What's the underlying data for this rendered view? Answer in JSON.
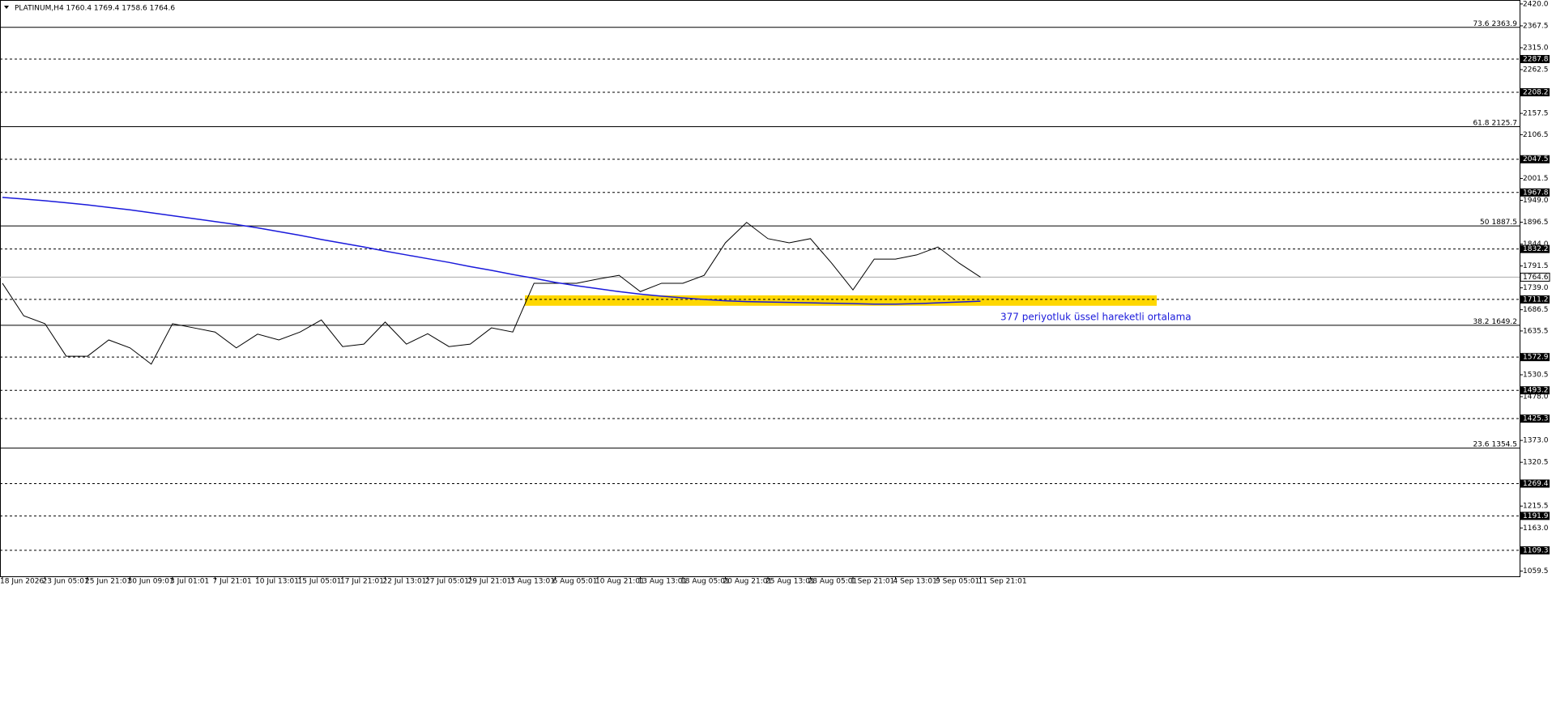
{
  "chart_data": {
    "type": "line",
    "title": "PLATINUM,H4  1760.4 1769.4 1758.6 1764.6",
    "categories": [
      "18 Jun 2026",
      null,
      "23 Jun 05:01",
      null,
      "25 Jun 21:01",
      null,
      "30 Jun 09:01",
      null,
      "3 Jul 01:01",
      null,
      "7 Jul 21:01",
      null,
      "10 Jul 13:01",
      null,
      "15 Jul 05:01",
      null,
      "17 Jul 21:01",
      null,
      "22 Jul 13:01",
      null,
      "27 Jul 05:01",
      null,
      "29 Jul 21:01",
      null,
      "3 Aug 13:01",
      null,
      "6 Aug 05:01",
      null,
      "10 Aug 21:01",
      null,
      "13 Aug 13:01",
      null,
      "18 Aug 05:01",
      null,
      "20 Aug 21:01",
      null,
      "25 Aug 13:01",
      null,
      "28 Aug 05:01",
      null,
      "1 Sep 21:01",
      null,
      "4 Sep 13:01",
      null,
      "9 Sep 05:01",
      null,
      "11 Sep 21:01"
    ],
    "series": [
      {
        "color": "#000000",
        "values": [
          1750,
          1672,
          1653,
          1575,
          1575,
          1614,
          1595,
          1556,
          1653,
          1643,
          1633,
          1595,
          1628,
          1614,
          1633,
          1662,
          1598,
          1604,
          1657,
          1604,
          1629,
          1598,
          1604,
          1643,
          1633,
          1750,
          1750,
          1750,
          1760,
          1769,
          1730,
          1750,
          1750,
          1769,
          1847,
          1896,
          1857,
          1847,
          1857,
          1798,
          1734,
          1808,
          1808,
          1818,
          1837,
          1798,
          1764.6
        ]
      },
      {
        "color": "#1a1adb",
        "values": [
          1956,
          1952,
          1948,
          1943,
          1938,
          1932,
          1926,
          1919,
          1912,
          1905,
          1898,
          1891,
          1883,
          1874,
          1865,
          1855,
          1846,
          1837,
          1827,
          1818,
          1809,
          1800,
          1790,
          1781,
          1771,
          1762,
          1752,
          1744,
          1737,
          1730,
          1724,
          1719,
          1715,
          1711,
          1708,
          1706,
          1705,
          1704,
          1703,
          1702,
          1701,
          1700,
          1700,
          1701,
          1703,
          1705,
          1707
        ]
      }
    ],
    "ylim": [
      1047,
      2429.5
    ],
    "yticks": [
      {
        "value": 2420.0,
        "label": "2420.0"
      },
      {
        "value": 2367.5,
        "label": "2367.5"
      },
      {
        "value": 2315.0,
        "label": "2315.0"
      },
      {
        "value": 2262.5,
        "label": "2262.5"
      },
      {
        "value": 2157.5,
        "label": "2157.5"
      },
      {
        "value": 2106.5,
        "label": "2106.5"
      },
      {
        "value": 2001.5,
        "label": "2001.5"
      },
      {
        "value": 1949.0,
        "label": "1949.0"
      },
      {
        "value": 1896.5,
        "label": "1896.5"
      },
      {
        "value": 1844.0,
        "label": "1844.0"
      },
      {
        "value": 1791.5,
        "label": "1791.5"
      },
      {
        "value": 1739.0,
        "label": "1739.0"
      },
      {
        "value": 1686.5,
        "label": "1686.5"
      },
      {
        "value": 1635.5,
        "label": "1635.5"
      },
      {
        "value": 1530.5,
        "label": "1530.5"
      },
      {
        "value": 1478.0,
        "label": "1478.0"
      },
      {
        "value": 1373.0,
        "label": "1373.0"
      },
      {
        "value": 1320.5,
        "label": "1320.5"
      },
      {
        "value": 1215.5,
        "label": "1215.5"
      },
      {
        "value": 1163.0,
        "label": "1163.0"
      },
      {
        "value": 1059.5,
        "label": "1059.5"
      }
    ],
    "levels": [
      2287.8,
      2208.2,
      2047.5,
      1967.8,
      1832.2,
      1711.2,
      1572.9,
      1493.2,
      1425.3,
      1269.4,
      1191.9,
      1109.3
    ],
    "fibs": [
      {
        "ratio": 73.6,
        "price": 2363.9
      },
      {
        "ratio": 61.8,
        "price": 2125.7
      },
      {
        "ratio": 50.0,
        "price": 1887.5
      },
      {
        "ratio": 38.2,
        "price": 1649.2
      },
      {
        "ratio": 23.6,
        "price": 1354.5
      }
    ],
    "current_price": 1764.6,
    "zone": {
      "color": "#ffd700",
      "low": 1696,
      "high": 1721
    },
    "annotation": "377 periyotluk üssel hareketli ortalama"
  }
}
